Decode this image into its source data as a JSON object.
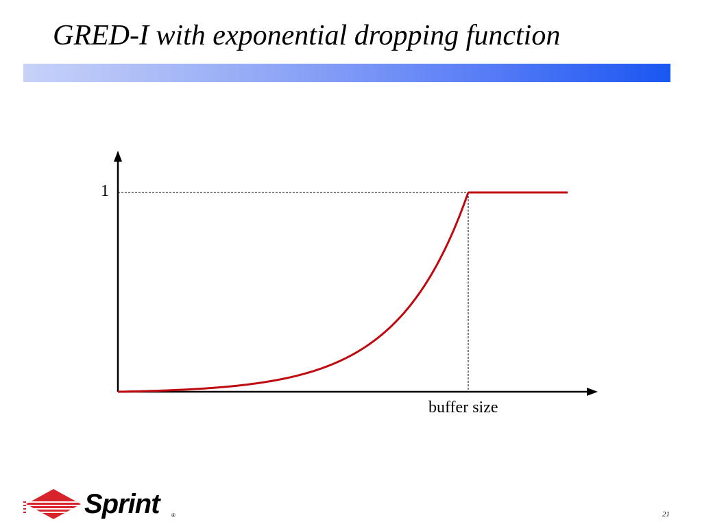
{
  "slide": {
    "title": "GRED-I with exponential dropping function",
    "page_number": "21"
  },
  "figure": {
    "y_tick_label": "1",
    "x_axis_label": "buffer size",
    "curve_color": "#c0090f",
    "curve_shape": "exponential rise from 0 to 1, then constant at 1"
  },
  "logo": {
    "brand_text": "Sprint",
    "registered_mark": "®",
    "brand_color": "#d8232a"
  },
  "theme": {
    "bar_gradient": [
      "#c8d2f8",
      "#1a56f2"
    ]
  }
}
